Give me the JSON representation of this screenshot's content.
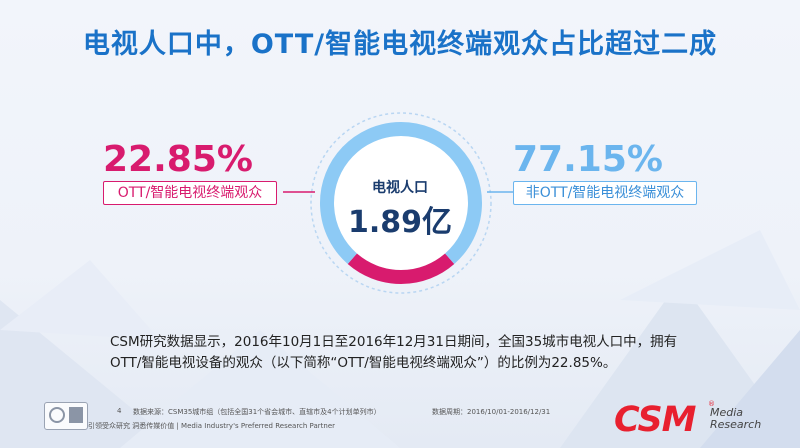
{
  "title": "电视人口中，OTT/智能电视终端观众占比超过二成",
  "chart_data": {
    "type": "pie",
    "categories": [
      "OTT/智能电视终端观众",
      "非OTT/智能电视终端观众"
    ],
    "values": [
      22.85,
      77.15
    ],
    "value_labels": [
      "22.85%",
      "77.15%"
    ],
    "center_label": "电视人口",
    "center_value": "1.89亿",
    "colors": [
      "#d81b6e",
      "#8dcaf5"
    ]
  },
  "description": "CSM研究数据显示，2016年10月1日至2016年12月31日期间，全国35城市电视人口中，拥有OTT/智能电视设备的观众（以下简称“OTT/智能电视终端观众”）的比例为22.85%。",
  "footer": {
    "page_number": "4",
    "source": "数据来源：CSM35城市组（包括全国31个省会城市、直辖市及4个计划单列市）",
    "period": "数据周期：2016/10/01-2016/12/31",
    "slogan": "引领受众研究  洞悉传媒价值 | Media Industry's Preferred Research Partner",
    "logo_text": "CSM",
    "logo_sub_1": "Media",
    "logo_sub_2": "Research"
  }
}
